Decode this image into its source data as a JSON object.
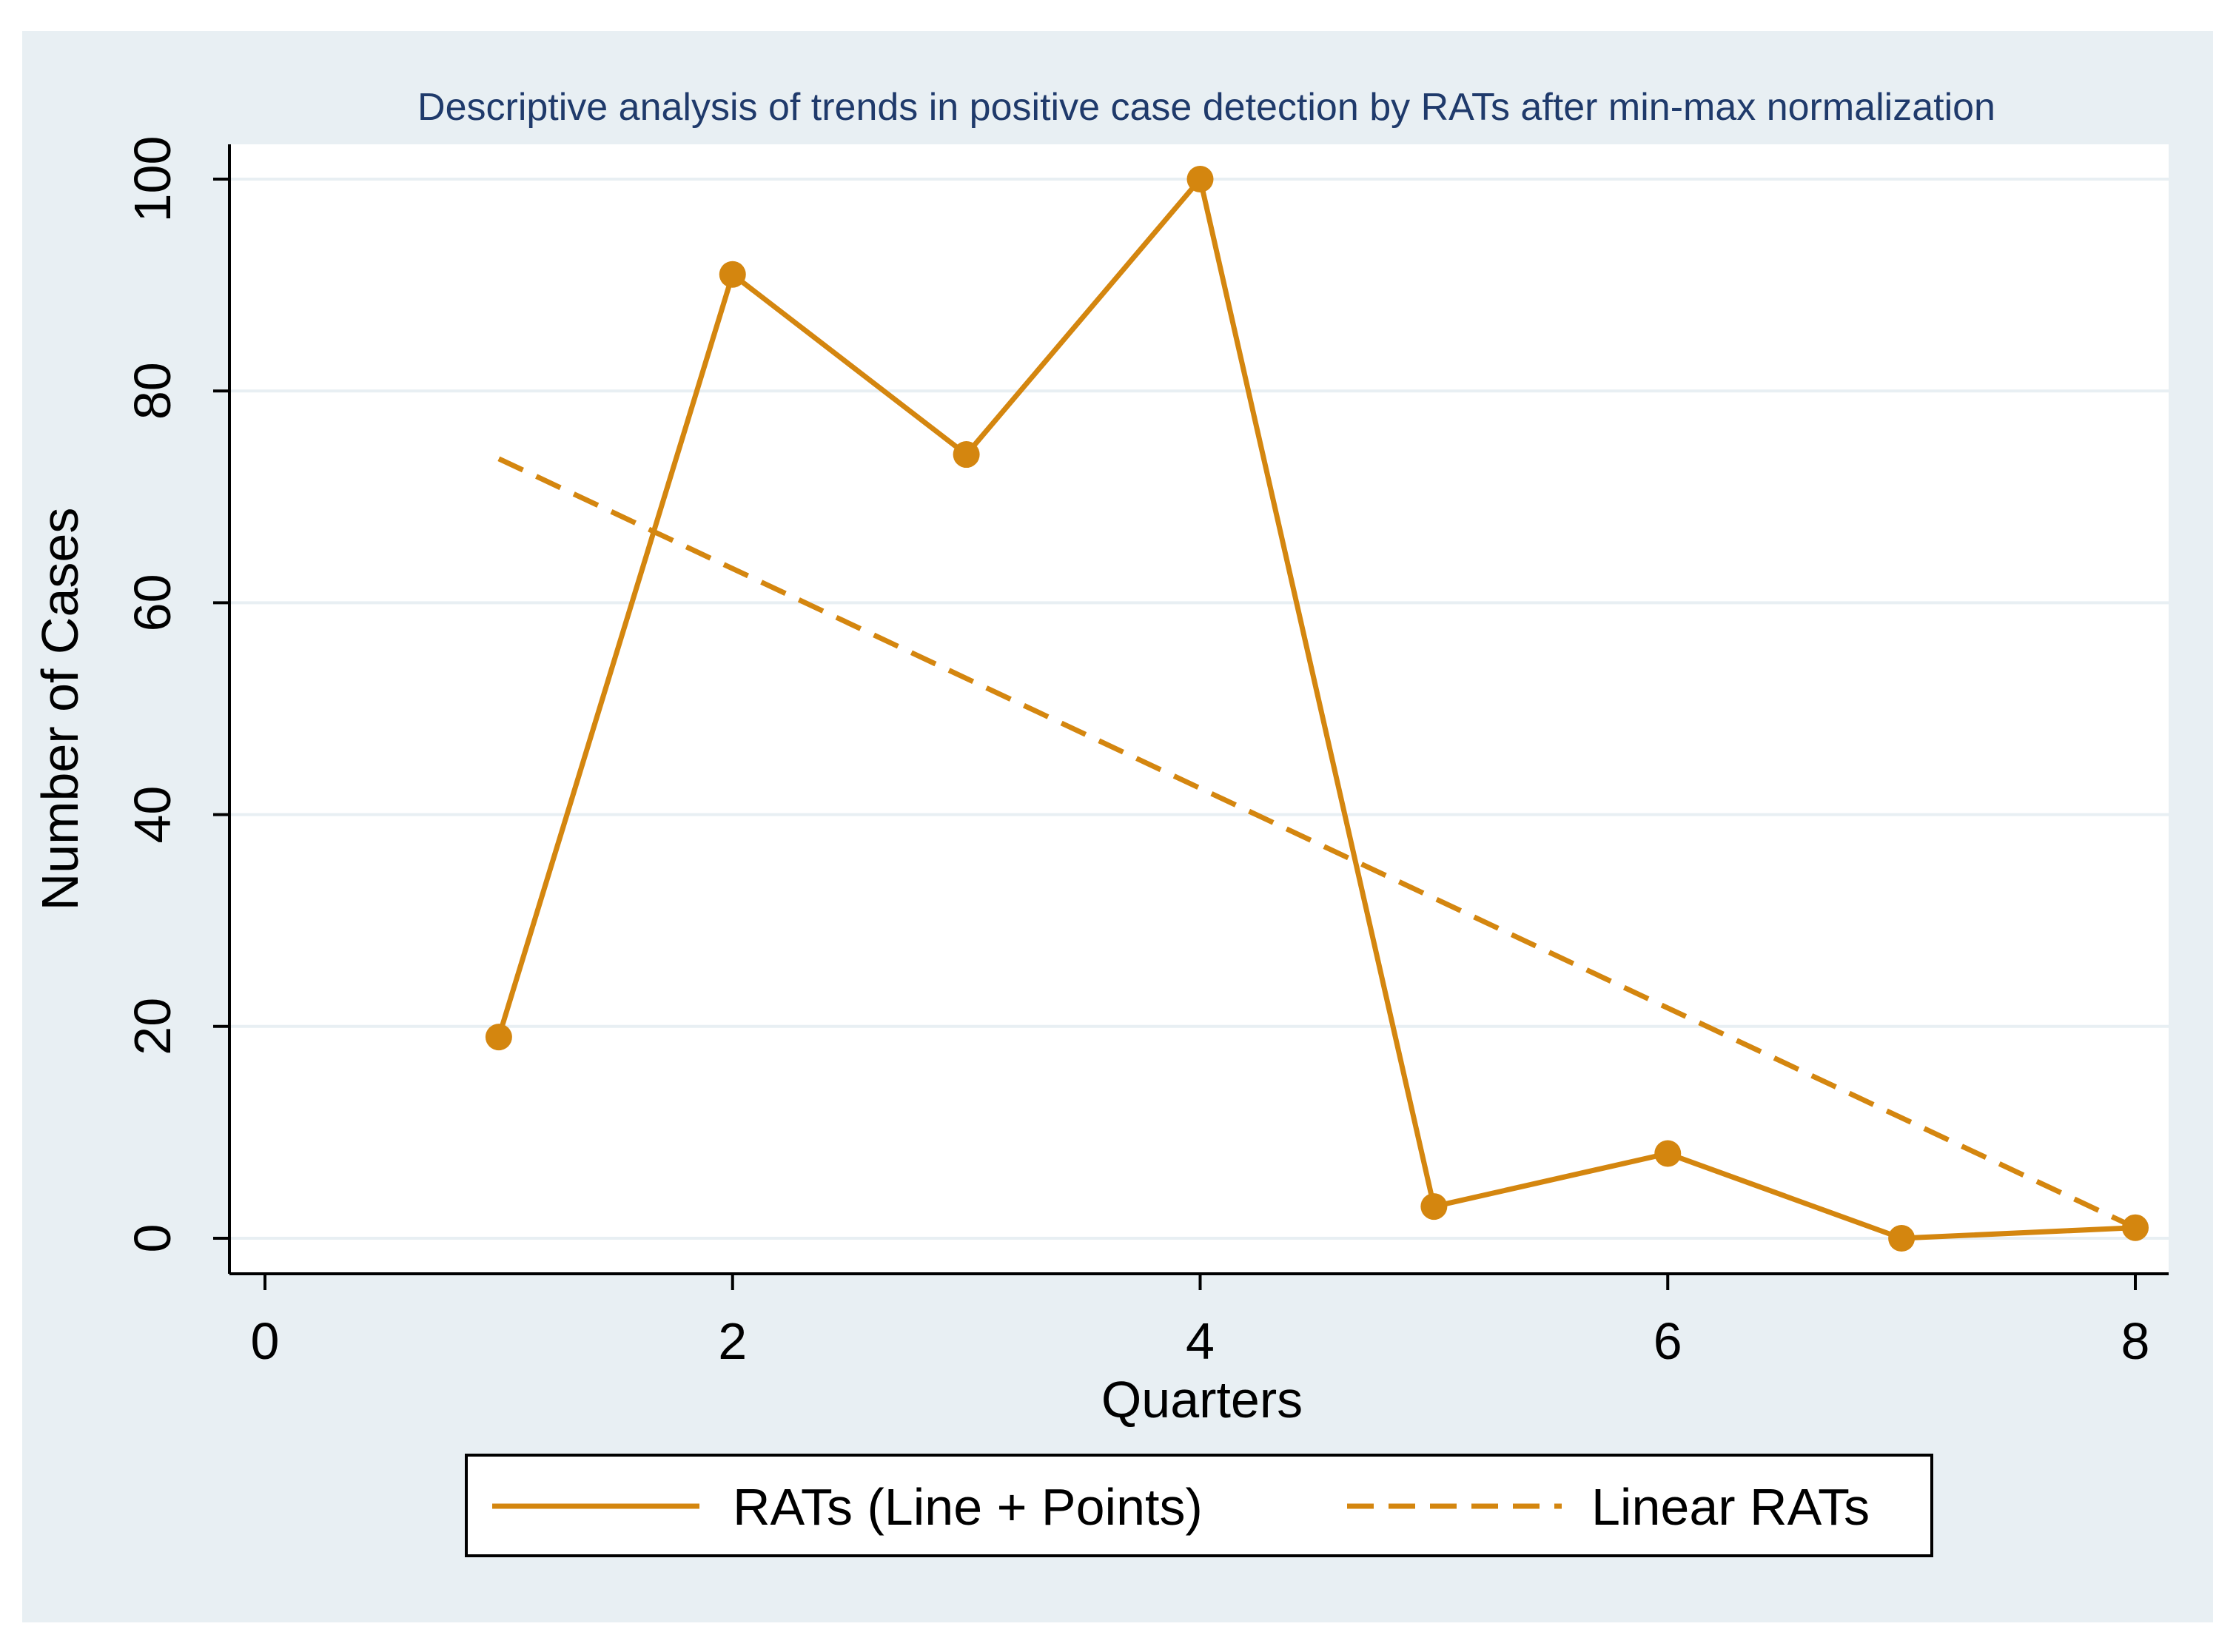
{
  "chart_data": {
    "type": "line",
    "title": "Descriptive analysis of trends in positive case detection by RATs after min-max normalization",
    "xlabel": "Quarters",
    "ylabel": "Number of Cases",
    "xlim": [
      0,
      8
    ],
    "ylim": [
      0,
      100
    ],
    "x_ticks": [
      0,
      2,
      4,
      6,
      8
    ],
    "y_ticks": [
      0,
      20,
      40,
      60,
      80,
      100
    ],
    "grid": true,
    "legend_position": "bottom",
    "colors": {
      "series": "#D4860F",
      "title": "#1F3A6B",
      "outer_background": "#E8EFF3",
      "plot_background": "#FFFFFF",
      "gridline": "#E8EFF3",
      "axis": "#000000"
    },
    "series": [
      {
        "name": "RATs (Line + Points)",
        "style": "solid-with-markers",
        "x": [
          1,
          2,
          3,
          4,
          5,
          6,
          7,
          8
        ],
        "values": [
          19,
          91,
          74,
          100,
          3,
          8,
          0,
          1
        ]
      },
      {
        "name": "Linear RATs",
        "style": "dashed",
        "x": [
          1,
          8
        ],
        "values": [
          73.6,
          1.0
        ]
      }
    ]
  }
}
